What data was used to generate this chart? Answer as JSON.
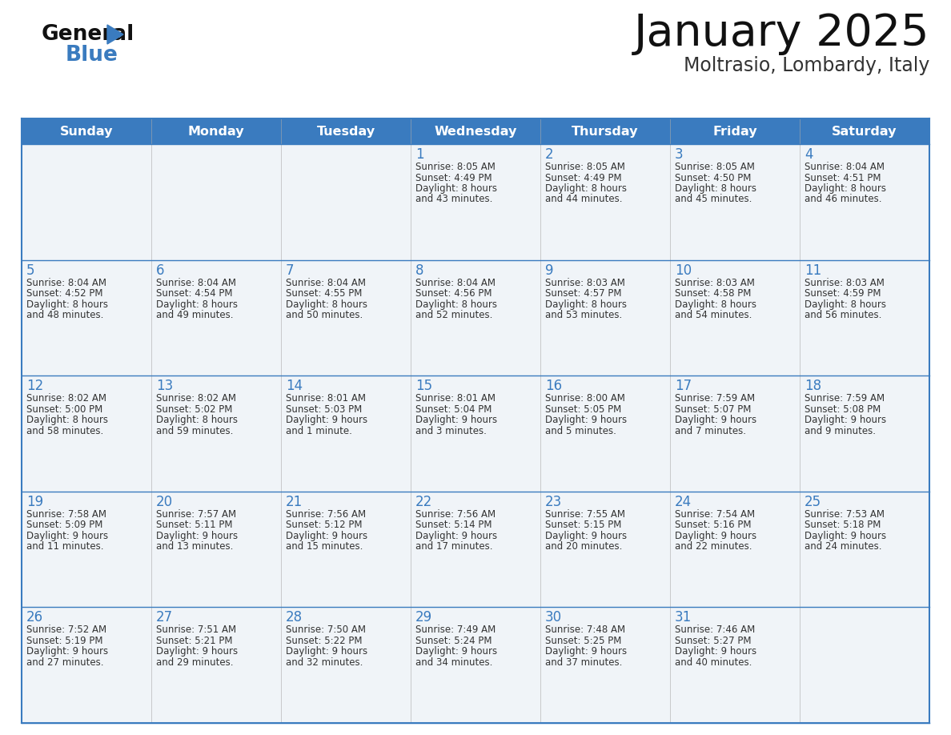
{
  "title": "January 2025",
  "subtitle": "Moltrasio, Lombardy, Italy",
  "header_color": "#3a7bbf",
  "header_text_color": "#ffffff",
  "cell_bg_even": "#f0f4f8",
  "cell_bg_odd": "#ffffff",
  "border_color_outer": "#3a7bbf",
  "border_color_inner": "#3a7bbf",
  "day_number_color": "#3a7bbf",
  "text_color": "#333333",
  "days_of_week": [
    "Sunday",
    "Monday",
    "Tuesday",
    "Wednesday",
    "Thursday",
    "Friday",
    "Saturday"
  ],
  "weeks": [
    [
      {
        "day": null,
        "sunrise": null,
        "sunset": null,
        "daylight": null
      },
      {
        "day": null,
        "sunrise": null,
        "sunset": null,
        "daylight": null
      },
      {
        "day": null,
        "sunrise": null,
        "sunset": null,
        "daylight": null
      },
      {
        "day": 1,
        "sunrise": "8:05 AM",
        "sunset": "4:49 PM",
        "daylight": "8 hours\nand 43 minutes."
      },
      {
        "day": 2,
        "sunrise": "8:05 AM",
        "sunset": "4:49 PM",
        "daylight": "8 hours\nand 44 minutes."
      },
      {
        "day": 3,
        "sunrise": "8:05 AM",
        "sunset": "4:50 PM",
        "daylight": "8 hours\nand 45 minutes."
      },
      {
        "day": 4,
        "sunrise": "8:04 AM",
        "sunset": "4:51 PM",
        "daylight": "8 hours\nand 46 minutes."
      }
    ],
    [
      {
        "day": 5,
        "sunrise": "8:04 AM",
        "sunset": "4:52 PM",
        "daylight": "8 hours\nand 48 minutes."
      },
      {
        "day": 6,
        "sunrise": "8:04 AM",
        "sunset": "4:54 PM",
        "daylight": "8 hours\nand 49 minutes."
      },
      {
        "day": 7,
        "sunrise": "8:04 AM",
        "sunset": "4:55 PM",
        "daylight": "8 hours\nand 50 minutes."
      },
      {
        "day": 8,
        "sunrise": "8:04 AM",
        "sunset": "4:56 PM",
        "daylight": "8 hours\nand 52 minutes."
      },
      {
        "day": 9,
        "sunrise": "8:03 AM",
        "sunset": "4:57 PM",
        "daylight": "8 hours\nand 53 minutes."
      },
      {
        "day": 10,
        "sunrise": "8:03 AM",
        "sunset": "4:58 PM",
        "daylight": "8 hours\nand 54 minutes."
      },
      {
        "day": 11,
        "sunrise": "8:03 AM",
        "sunset": "4:59 PM",
        "daylight": "8 hours\nand 56 minutes."
      }
    ],
    [
      {
        "day": 12,
        "sunrise": "8:02 AM",
        "sunset": "5:00 PM",
        "daylight": "8 hours\nand 58 minutes."
      },
      {
        "day": 13,
        "sunrise": "8:02 AM",
        "sunset": "5:02 PM",
        "daylight": "8 hours\nand 59 minutes."
      },
      {
        "day": 14,
        "sunrise": "8:01 AM",
        "sunset": "5:03 PM",
        "daylight": "9 hours\nand 1 minute."
      },
      {
        "day": 15,
        "sunrise": "8:01 AM",
        "sunset": "5:04 PM",
        "daylight": "9 hours\nand 3 minutes."
      },
      {
        "day": 16,
        "sunrise": "8:00 AM",
        "sunset": "5:05 PM",
        "daylight": "9 hours\nand 5 minutes."
      },
      {
        "day": 17,
        "sunrise": "7:59 AM",
        "sunset": "5:07 PM",
        "daylight": "9 hours\nand 7 minutes."
      },
      {
        "day": 18,
        "sunrise": "7:59 AM",
        "sunset": "5:08 PM",
        "daylight": "9 hours\nand 9 minutes."
      }
    ],
    [
      {
        "day": 19,
        "sunrise": "7:58 AM",
        "sunset": "5:09 PM",
        "daylight": "9 hours\nand 11 minutes."
      },
      {
        "day": 20,
        "sunrise": "7:57 AM",
        "sunset": "5:11 PM",
        "daylight": "9 hours\nand 13 minutes."
      },
      {
        "day": 21,
        "sunrise": "7:56 AM",
        "sunset": "5:12 PM",
        "daylight": "9 hours\nand 15 minutes."
      },
      {
        "day": 22,
        "sunrise": "7:56 AM",
        "sunset": "5:14 PM",
        "daylight": "9 hours\nand 17 minutes."
      },
      {
        "day": 23,
        "sunrise": "7:55 AM",
        "sunset": "5:15 PM",
        "daylight": "9 hours\nand 20 minutes."
      },
      {
        "day": 24,
        "sunrise": "7:54 AM",
        "sunset": "5:16 PM",
        "daylight": "9 hours\nand 22 minutes."
      },
      {
        "day": 25,
        "sunrise": "7:53 AM",
        "sunset": "5:18 PM",
        "daylight": "9 hours\nand 24 minutes."
      }
    ],
    [
      {
        "day": 26,
        "sunrise": "7:52 AM",
        "sunset": "5:19 PM",
        "daylight": "9 hours\nand 27 minutes."
      },
      {
        "day": 27,
        "sunrise": "7:51 AM",
        "sunset": "5:21 PM",
        "daylight": "9 hours\nand 29 minutes."
      },
      {
        "day": 28,
        "sunrise": "7:50 AM",
        "sunset": "5:22 PM",
        "daylight": "9 hours\nand 32 minutes."
      },
      {
        "day": 29,
        "sunrise": "7:49 AM",
        "sunset": "5:24 PM",
        "daylight": "9 hours\nand 34 minutes."
      },
      {
        "day": 30,
        "sunrise": "7:48 AM",
        "sunset": "5:25 PM",
        "daylight": "9 hours\nand 37 minutes."
      },
      {
        "day": 31,
        "sunrise": "7:46 AM",
        "sunset": "5:27 PM",
        "daylight": "9 hours\nand 40 minutes."
      },
      {
        "day": null,
        "sunrise": null,
        "sunset": null,
        "daylight": null
      }
    ]
  ]
}
